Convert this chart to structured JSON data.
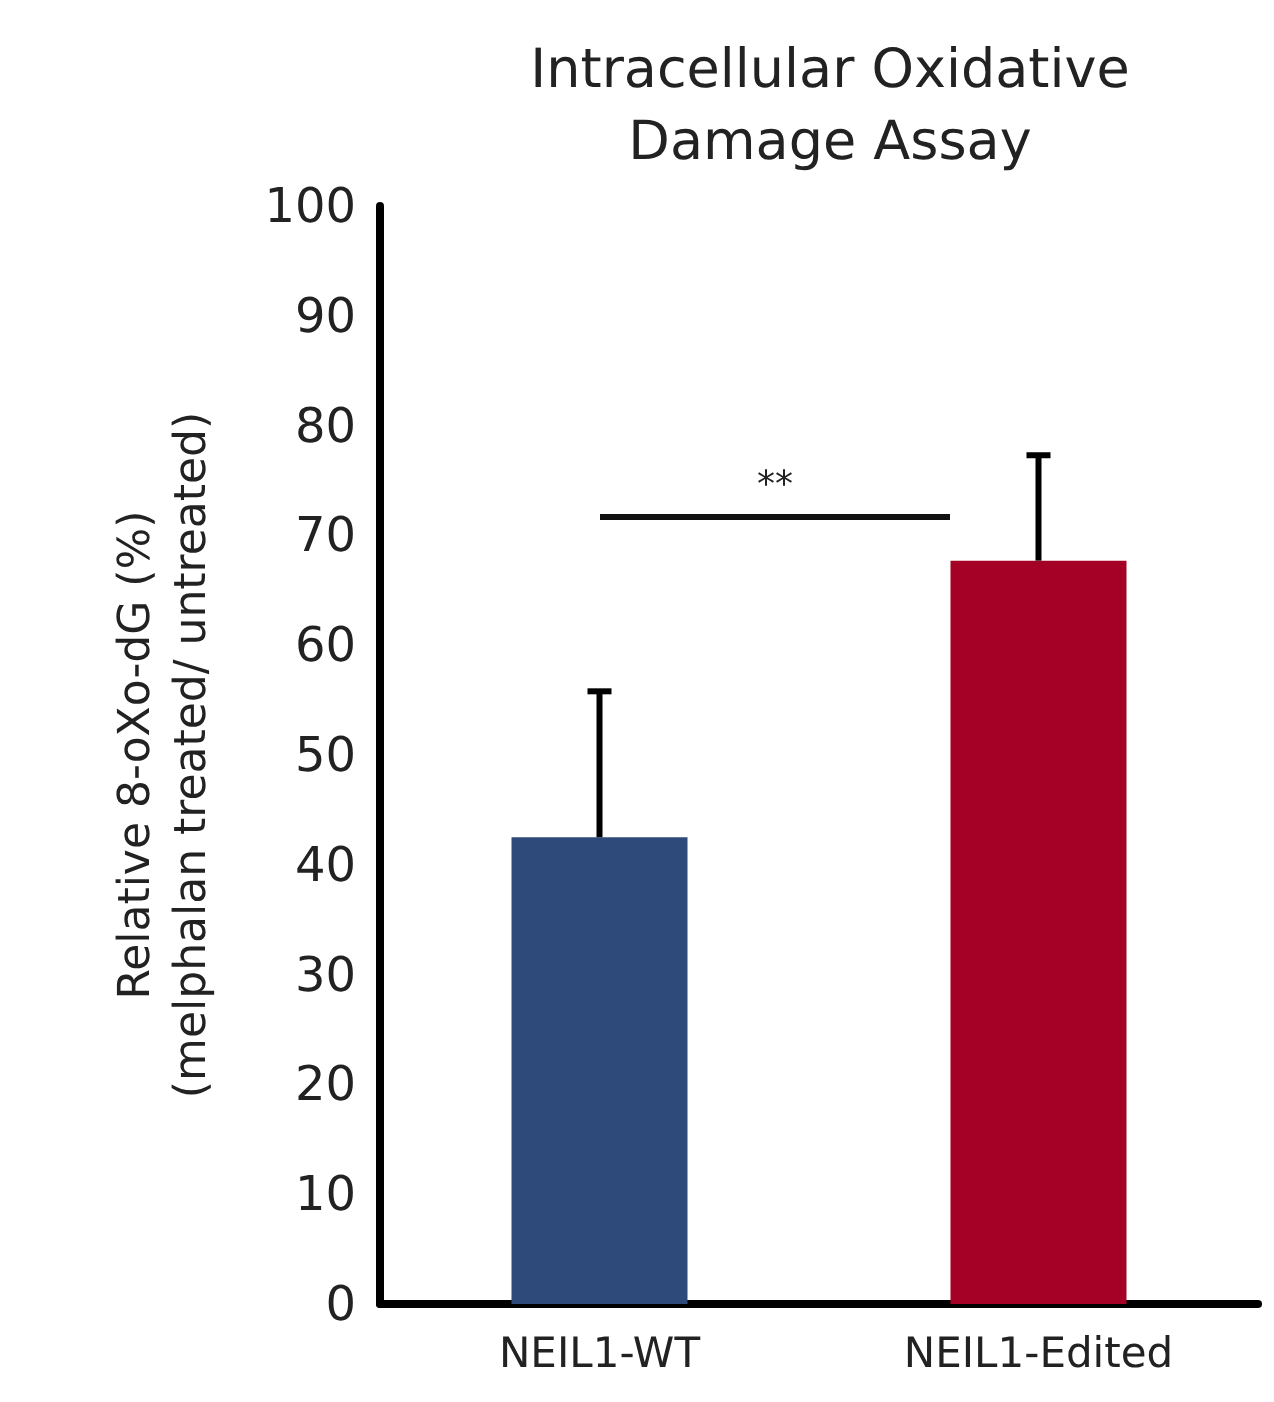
{
  "chart_data": {
    "type": "bar",
    "title": "Intracellular Oxidative\nDamage Assay",
    "ylabel": "Relative 8-oXo-dG (%)\n(melphalan treated/ untreated)",
    "categories": [
      "NEIL1-WT",
      "NEIL1-Edited"
    ],
    "values": [
      42.5,
      67.7
    ],
    "colors": [
      "#2e4a7a",
      "#a50026"
    ],
    "errors": [
      13.3,
      9.6
    ],
    "ylim": [
      0,
      100
    ],
    "yticks": [
      0,
      10,
      20,
      30,
      40,
      50,
      60,
      70,
      80,
      90,
      100
    ],
    "grid": false,
    "annotations": [
      "**"
    ]
  }
}
